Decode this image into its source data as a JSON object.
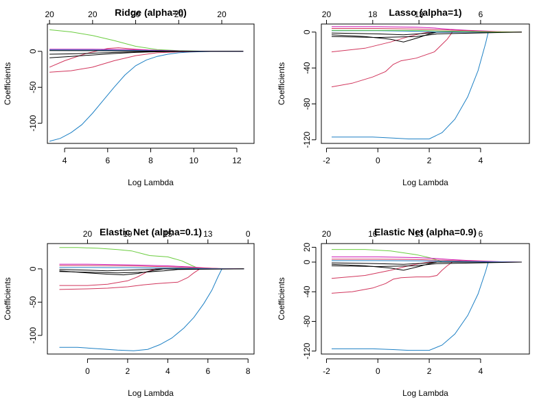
{
  "chart_data": [
    {
      "type": "line",
      "title": "Ridge (alpha=0)",
      "xlabel": "Log Lambda",
      "ylabel": "Coefficients",
      "xlim": [
        3.2,
        12.8
      ],
      "ylim": [
        -128,
        38
      ],
      "xticks": [
        4,
        6,
        8,
        10,
        12
      ],
      "yticks": [
        0,
        -50,
        -100
      ],
      "top_ticks": [
        {
          "x": 3.3,
          "label": "20"
        },
        {
          "x": 5.3,
          "label": "20"
        },
        {
          "x": 7.3,
          "label": "20"
        },
        {
          "x": 9.3,
          "label": "20"
        },
        {
          "x": 11.3,
          "label": "20"
        }
      ],
      "series": [
        {
          "color": "#1b7fc4",
          "x": [
            3.3,
            3.8,
            4.3,
            4.8,
            5.3,
            5.8,
            6.3,
            6.8,
            7.3,
            7.8,
            8.3,
            8.8,
            9.3,
            9.8,
            10.3,
            10.8,
            11.3,
            12.3
          ],
          "y": [
            -125,
            -121,
            -113,
            -102,
            -86,
            -68,
            -50,
            -33,
            -20,
            -12,
            -7,
            -4,
            -2,
            -1,
            -0.5,
            -0.2,
            -0.1,
            0
          ]
        },
        {
          "color": "#6acc3e",
          "x": [
            3.3,
            4.3,
            5.3,
            6.3,
            7.3,
            8.3,
            9.3,
            10.3,
            11.3,
            12.3
          ],
          "y": [
            30,
            27,
            22,
            15,
            7,
            2.5,
            1,
            0.3,
            0.1,
            0
          ]
        },
        {
          "color": "#d1345b",
          "x": [
            3.3,
            4.3,
            5.3,
            6.3,
            7.3,
            8.3,
            9.3,
            10.3,
            11.3,
            12.3
          ],
          "y": [
            -29,
            -27,
            -22,
            -13,
            -6,
            -2,
            -0.7,
            -0.2,
            0,
            0
          ]
        },
        {
          "color": "#d1345b",
          "x": [
            3.3,
            4.0,
            5.0,
            6.0,
            6.5,
            7.3,
            8.3,
            9.3,
            10.3,
            12.3
          ],
          "y": [
            -22,
            -13,
            -3,
            4,
            5,
            3,
            1,
            0.3,
            0.1,
            0
          ]
        },
        {
          "color": "#000000",
          "x": [
            3.3,
            4.3,
            5.3,
            6.3,
            7.3,
            8.3,
            9.3,
            10.3,
            12.3
          ],
          "y": [
            -9,
            -7,
            -5,
            -3,
            -1.5,
            -0.5,
            -0.2,
            0,
            0
          ]
        },
        {
          "color": "#000000",
          "x": [
            3.3,
            4.3,
            5.3,
            6.3,
            7.3,
            8.3,
            9.3,
            10.3,
            12.3
          ],
          "y": [
            -4,
            -3.5,
            -2.5,
            -1.5,
            -0.7,
            -0.3,
            -0.1,
            0,
            0
          ]
        },
        {
          "color": "#cc0fb0",
          "x": [
            3.3,
            5.3,
            7.3,
            8.3,
            9.3,
            10.3,
            12.3
          ],
          "y": [
            3,
            3,
            2.3,
            1.5,
            0.6,
            0.2,
            0
          ]
        },
        {
          "color": "#1b7fc4",
          "x": [
            3.3,
            5.3,
            7.3,
            8.3,
            9.3,
            10.3,
            12.3
          ],
          "y": [
            2,
            1.8,
            1.3,
            0.8,
            0.3,
            0.1,
            0
          ]
        },
        {
          "color": "#000000",
          "x": [
            3.3,
            5.3,
            7.3,
            8.3,
            9.3,
            10.3,
            12.3
          ],
          "y": [
            1,
            0.9,
            0.6,
            0.3,
            0.1,
            0,
            0
          ]
        }
      ]
    },
    {
      "type": "line",
      "title": "Lasso (alpha=1)",
      "xlabel": "Log Lambda",
      "ylabel": "Coefficients",
      "xlim": [
        -2.2,
        5.9
      ],
      "ylim": [
        -124,
        9
      ],
      "xticks": [
        -2,
        0,
        2,
        4
      ],
      "yticks": [
        0,
        -40,
        -80,
        -120
      ],
      "top_ticks": [
        {
          "x": -2,
          "label": "20"
        },
        {
          "x": -0.2,
          "label": "18"
        },
        {
          "x": 1.6,
          "label": "13"
        },
        {
          "x": 4,
          "label": "6"
        }
      ],
      "series": [
        {
          "color": "#1b7fc4",
          "x": [
            -1.8,
            -1.0,
            -0.2,
            0.6,
            1.2,
            2.0,
            2.5,
            3.0,
            3.5,
            3.9,
            4.2,
            4.3,
            5.6
          ],
          "y": [
            -117,
            -117,
            -117,
            -118,
            -119,
            -119,
            -112,
            -97,
            -72,
            -43,
            -12,
            0,
            0
          ]
        },
        {
          "color": "#d1345b",
          "x": [
            -1.8,
            -1.0,
            -0.2,
            0.3,
            0.6,
            0.9,
            1.5,
            2.2,
            2.7,
            2.9,
            5.6
          ],
          "y": [
            -61,
            -57,
            -50,
            -44,
            -36,
            -32,
            -29,
            -22,
            -8,
            0,
            0
          ]
        },
        {
          "color": "#d1345b",
          "x": [
            -1.8,
            -0.5,
            0.5,
            1.2,
            1.7,
            2.0,
            2.2,
            5.6
          ],
          "y": [
            -22,
            -18,
            -11,
            -5,
            -1.5,
            0,
            0,
            0
          ]
        },
        {
          "color": "#000000",
          "x": [
            -1.8,
            -0.5,
            0.5,
            1.0,
            1.6,
            2.0,
            2.3,
            5.6
          ],
          "y": [
            -3,
            -5,
            -8,
            -11,
            -6,
            -2,
            0,
            0
          ]
        },
        {
          "color": "#000000",
          "x": [
            -1.8,
            0,
            1.0,
            1.8,
            2.3,
            5.6
          ],
          "y": [
            -1,
            -2,
            -3,
            -1.5,
            0,
            0
          ]
        },
        {
          "color": "#1b7fc4",
          "x": [
            -1.8,
            0,
            1.0,
            1.8,
            2.4,
            5.6
          ],
          "y": [
            1.5,
            1.5,
            1.2,
            0.7,
            0,
            0
          ]
        },
        {
          "color": "#cc0fb0",
          "x": [
            -1.8,
            0,
            1.5,
            2.2,
            2.8,
            3.5,
            4.2,
            4.8,
            5.6
          ],
          "y": [
            6,
            6,
            5.5,
            4.5,
            3,
            2,
            1.2,
            0.4,
            0
          ]
        },
        {
          "color": "#d1345b",
          "x": [
            -1.8,
            0,
            1.5,
            2.5,
            3.5,
            4.5,
            5.6
          ],
          "y": [
            4,
            4,
            3.5,
            2.5,
            1.5,
            0.5,
            0
          ]
        },
        {
          "color": "#6acc3e",
          "x": [
            -1.8,
            0,
            1.5,
            2.5,
            3.5,
            4.5,
            5.6
          ],
          "y": [
            2,
            2,
            1.8,
            1.2,
            0.7,
            0.2,
            0
          ]
        },
        {
          "color": "#000000",
          "x": [
            -1.8,
            0,
            1.5,
            2.3,
            5.6
          ],
          "y": [
            -5,
            -6,
            -5,
            -2,
            0
          ]
        }
      ]
    },
    {
      "type": "line",
      "title": "Elastic Net (alpha=0.1)",
      "xlabel": "Log Lambda",
      "ylabel": "Coefficients",
      "xlim": [
        -2.0,
        8.3
      ],
      "ylim": [
        -128,
        38
      ],
      "xticks": [
        0,
        2,
        4,
        6,
        8
      ],
      "yticks": [
        0,
        -50,
        -100
      ],
      "top_ticks": [
        {
          "x": 0,
          "label": "20"
        },
        {
          "x": 2,
          "label": "19"
        },
        {
          "x": 4,
          "label": "15"
        },
        {
          "x": 6,
          "label": "13"
        },
        {
          "x": 8,
          "label": "0"
        }
      ],
      "series": [
        {
          "color": "#1b7fc4",
          "x": [
            -1.4,
            -0.5,
            0.5,
            1.5,
            2.3,
            3.0,
            3.6,
            4.2,
            4.8,
            5.3,
            5.8,
            6.2,
            6.5,
            6.7,
            7.8
          ],
          "y": [
            -118,
            -118,
            -120,
            -122,
            -123,
            -121,
            -114,
            -104,
            -89,
            -73,
            -52,
            -32,
            -12,
            0,
            0
          ]
        },
        {
          "color": "#6acc3e",
          "x": [
            -1.4,
            -0.5,
            0.5,
            1.5,
            2.2,
            2.7,
            3.1,
            4.0,
            4.7,
            5.2,
            5.6,
            7.8
          ],
          "y": [
            32,
            32,
            31,
            29,
            27,
            23,
            20,
            18,
            12,
            5,
            0,
            0
          ]
        },
        {
          "color": "#d1345b",
          "x": [
            -1.4,
            0,
            1.0,
            2.0,
            2.8,
            3.5,
            4.0,
            4.5,
            5.0,
            5.3,
            5.6,
            7.8
          ],
          "y": [
            -31,
            -30,
            -29,
            -27,
            -24,
            -22,
            -21,
            -20,
            -13,
            -6,
            0,
            0
          ]
        },
        {
          "color": "#d1345b",
          "x": [
            -1.4,
            0,
            1.0,
            2.0,
            2.5,
            3.0,
            3.4,
            7.8
          ],
          "y": [
            -25,
            -25,
            -23,
            -18,
            -12,
            -4,
            0,
            0
          ]
        },
        {
          "color": "#000000",
          "x": [
            -1.4,
            0,
            1.0,
            1.8,
            2.5,
            3.2,
            3.8,
            7.8
          ],
          "y": [
            -3,
            -6,
            -8,
            -9,
            -7,
            -3,
            0,
            0
          ]
        },
        {
          "color": "#000000",
          "x": [
            -1.4,
            0,
            1.0,
            2.0,
            3.0,
            3.8,
            7.8
          ],
          "y": [
            -1,
            -2,
            -3,
            -2,
            -1,
            0,
            0
          ]
        },
        {
          "color": "#cc0fb0",
          "x": [
            -1.4,
            0,
            2.0,
            4.0,
            5.0,
            5.8,
            6.5,
            7.5
          ],
          "y": [
            7,
            7,
            6,
            4.5,
            3,
            1.5,
            0.5,
            0
          ]
        },
        {
          "color": "#d1345b",
          "x": [
            -1.4,
            0,
            2.0,
            4.0,
            5.0,
            6.0,
            7.0,
            7.8
          ],
          "y": [
            5,
            5,
            4.5,
            3,
            2,
            1,
            0.3,
            0
          ]
        },
        {
          "color": "#1b7fc4",
          "x": [
            -1.4,
            0,
            2.0,
            4.0,
            5.0,
            6.0,
            7.8
          ],
          "y": [
            2,
            2,
            1.8,
            1.2,
            0.8,
            0.3,
            0
          ]
        },
        {
          "color": "#000000",
          "x": [
            -1.4,
            0,
            1.5,
            2.8,
            3.8,
            4.5,
            7.8
          ],
          "y": [
            -4,
            -5,
            -6,
            -5,
            -3,
            -1,
            0
          ]
        }
      ]
    },
    {
      "type": "line",
      "title": "Elastic Net (alpha=0.9)",
      "xlabel": "Log Lambda",
      "ylabel": "Coefficients",
      "xlim": [
        -2.2,
        5.9
      ],
      "ylim": [
        -124,
        25
      ],
      "xticks": [
        -2,
        0,
        2,
        4
      ],
      "yticks": [
        20,
        0,
        -40,
        -80,
        -120
      ],
      "top_ticks": [
        {
          "x": -2,
          "label": "20"
        },
        {
          "x": -0.2,
          "label": "16"
        },
        {
          "x": 1.6,
          "label": "13"
        },
        {
          "x": 4,
          "label": "6"
        }
      ],
      "series": [
        {
          "color": "#1b7fc4",
          "x": [
            -1.8,
            -1.0,
            -0.2,
            0.6,
            1.2,
            2.0,
            2.5,
            3.0,
            3.5,
            3.9,
            4.2,
            4.3,
            5.6
          ],
          "y": [
            -117,
            -117,
            -117,
            -118,
            -119,
            -119,
            -112,
            -97,
            -72,
            -43,
            -12,
            0,
            0
          ]
        },
        {
          "color": "#d1345b",
          "x": [
            -1.8,
            -1.0,
            -0.2,
            0.3,
            0.6,
            0.9,
            1.5,
            2.0,
            2.3,
            2.5,
            2.7,
            2.9,
            5.6
          ],
          "y": [
            -42,
            -40,
            -35,
            -29,
            -23,
            -21,
            -20,
            -20,
            -18,
            -11,
            -5,
            0,
            0
          ]
        },
        {
          "color": "#d1345b",
          "x": [
            -1.8,
            -0.5,
            0.5,
            1.2,
            1.7,
            2.0,
            2.2,
            5.6
          ],
          "y": [
            -22,
            -18,
            -11,
            -5,
            -1.5,
            0,
            0,
            0
          ]
        },
        {
          "color": "#6acc3e",
          "x": [
            -1.8,
            -0.5,
            0.5,
            1.5,
            2.0,
            2.3,
            2.5,
            5.6
          ],
          "y": [
            17,
            17,
            15,
            10,
            6,
            3,
            0,
            0
          ]
        },
        {
          "color": "#000000",
          "x": [
            -1.8,
            -0.5,
            0.5,
            1.0,
            1.6,
            2.0,
            2.3,
            5.6
          ],
          "y": [
            -3,
            -5,
            -8,
            -11,
            -6,
            -2,
            0,
            0
          ]
        },
        {
          "color": "#000000",
          "x": [
            -1.8,
            0,
            1.0,
            1.8,
            2.3,
            5.6
          ],
          "y": [
            -1,
            -2,
            -3,
            -1.5,
            0,
            0
          ]
        },
        {
          "color": "#cc0fb0",
          "x": [
            -1.8,
            0,
            1.5,
            2.2,
            2.8,
            3.5,
            4.2,
            4.8,
            5.6
          ],
          "y": [
            7,
            7,
            6,
            5,
            3.5,
            2.2,
            1.3,
            0.5,
            0
          ]
        },
        {
          "color": "#d1345b",
          "x": [
            -1.8,
            0,
            1.5,
            2.5,
            3.5,
            4.5,
            5.6
          ],
          "y": [
            4,
            4,
            3.5,
            2.5,
            1.5,
            0.5,
            0
          ]
        },
        {
          "color": "#1b7fc4",
          "x": [
            -1.8,
            0,
            1.5,
            2.5,
            3.5,
            4.5,
            5.6
          ],
          "y": [
            2,
            2,
            1.8,
            1.2,
            0.7,
            0.2,
            0
          ]
        },
        {
          "color": "#000000",
          "x": [
            -1.8,
            0,
            1.5,
            2.3,
            5.6
          ],
          "y": [
            -5,
            -6,
            -5,
            -2,
            0
          ]
        }
      ]
    }
  ]
}
